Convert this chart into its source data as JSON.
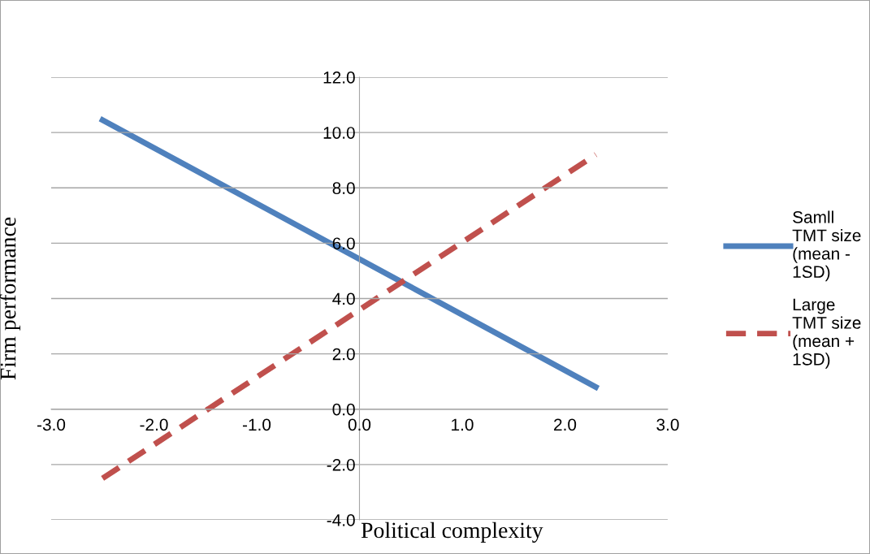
{
  "chart_data": {
    "type": "line",
    "xlabel": "Political complexity",
    "ylabel": "Firm performance",
    "x": [
      -2.5,
      2.3
    ],
    "series": [
      {
        "name": "Samll\nTMT size\n(mean -\n1SD)",
        "color": "#4f81bd",
        "values": [
          10.45,
          0.8
        ],
        "line_style": "solid"
      },
      {
        "name": "Large\nTMT size\n(mean +\n1SD)",
        "color": "#c0504d",
        "values": [
          -2.5,
          9.2
        ],
        "line_style": "dashed"
      }
    ],
    "xlim": [
      -3,
      3
    ],
    "ylim": [
      -4,
      12
    ],
    "xticks": [
      {
        "value": -3,
        "label": "-3.0"
      },
      {
        "value": -2,
        "label": "-2.0"
      },
      {
        "value": -1,
        "label": "-1.0"
      },
      {
        "value": 0,
        "label": "0.0"
      },
      {
        "value": 1,
        "label": "1.0"
      },
      {
        "value": 2,
        "label": "2.0"
      },
      {
        "value": 3,
        "label": "3.0"
      }
    ],
    "yticks": [
      {
        "value": -4,
        "label": "-4.0"
      },
      {
        "value": -2,
        "label": "-2.0"
      },
      {
        "value": 0,
        "label": "0.0"
      },
      {
        "value": 2,
        "label": "2.0"
      },
      {
        "value": 4,
        "label": "4.0"
      },
      {
        "value": 6,
        "label": "6.0"
      },
      {
        "value": 8,
        "label": "8.0"
      },
      {
        "value": 10,
        "label": "10.0"
      },
      {
        "value": 12,
        "label": "12.0"
      }
    ],
    "grid": "y",
    "legend": "right",
    "marker": "none"
  }
}
